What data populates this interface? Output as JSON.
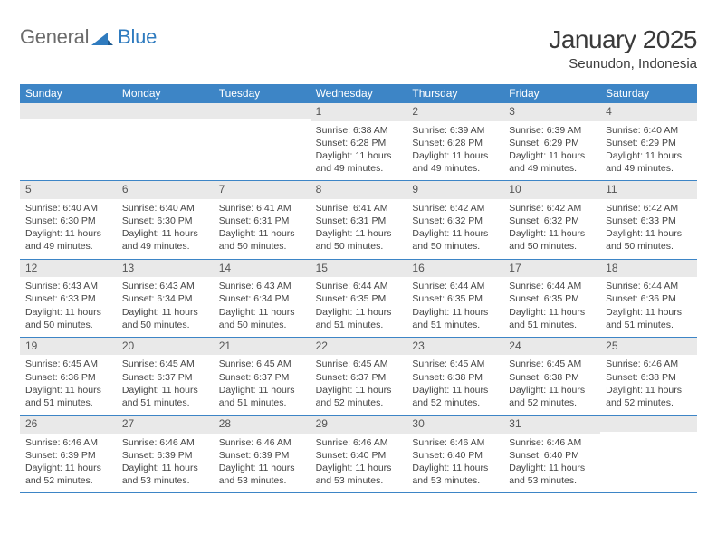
{
  "logo": {
    "text1": "General",
    "text2": "Blue",
    "text_color": "#6b6b6b",
    "accent_color": "#2f7bbf",
    "fontsize": 22
  },
  "title": {
    "month": "January 2025",
    "location": "Seunudon, Indonesia",
    "month_fontsize": 28,
    "month_color": "#3a3a3a",
    "location_fontsize": 15,
    "location_color": "#3a3a3a"
  },
  "colors": {
    "header_bg": "#3d85c6",
    "header_text": "#ffffff",
    "daynum_bg": "#e9e9e9",
    "daynum_text": "#555555",
    "body_text": "#444444",
    "week_border": "#3d85c6",
    "page_bg": "#ffffff"
  },
  "weekdays": [
    "Sunday",
    "Monday",
    "Tuesday",
    "Wednesday",
    "Thursday",
    "Friday",
    "Saturday"
  ],
  "weeks": [
    [
      {
        "day": "",
        "sunrise": "",
        "sunset": "",
        "daylight": ""
      },
      {
        "day": "",
        "sunrise": "",
        "sunset": "",
        "daylight": ""
      },
      {
        "day": "",
        "sunrise": "",
        "sunset": "",
        "daylight": ""
      },
      {
        "day": "1",
        "sunrise": "Sunrise: 6:38 AM",
        "sunset": "Sunset: 6:28 PM",
        "daylight": "Daylight: 11 hours and 49 minutes."
      },
      {
        "day": "2",
        "sunrise": "Sunrise: 6:39 AM",
        "sunset": "Sunset: 6:28 PM",
        "daylight": "Daylight: 11 hours and 49 minutes."
      },
      {
        "day": "3",
        "sunrise": "Sunrise: 6:39 AM",
        "sunset": "Sunset: 6:29 PM",
        "daylight": "Daylight: 11 hours and 49 minutes."
      },
      {
        "day": "4",
        "sunrise": "Sunrise: 6:40 AM",
        "sunset": "Sunset: 6:29 PM",
        "daylight": "Daylight: 11 hours and 49 minutes."
      }
    ],
    [
      {
        "day": "5",
        "sunrise": "Sunrise: 6:40 AM",
        "sunset": "Sunset: 6:30 PM",
        "daylight": "Daylight: 11 hours and 49 minutes."
      },
      {
        "day": "6",
        "sunrise": "Sunrise: 6:40 AM",
        "sunset": "Sunset: 6:30 PM",
        "daylight": "Daylight: 11 hours and 49 minutes."
      },
      {
        "day": "7",
        "sunrise": "Sunrise: 6:41 AM",
        "sunset": "Sunset: 6:31 PM",
        "daylight": "Daylight: 11 hours and 50 minutes."
      },
      {
        "day": "8",
        "sunrise": "Sunrise: 6:41 AM",
        "sunset": "Sunset: 6:31 PM",
        "daylight": "Daylight: 11 hours and 50 minutes."
      },
      {
        "day": "9",
        "sunrise": "Sunrise: 6:42 AM",
        "sunset": "Sunset: 6:32 PM",
        "daylight": "Daylight: 11 hours and 50 minutes."
      },
      {
        "day": "10",
        "sunrise": "Sunrise: 6:42 AM",
        "sunset": "Sunset: 6:32 PM",
        "daylight": "Daylight: 11 hours and 50 minutes."
      },
      {
        "day": "11",
        "sunrise": "Sunrise: 6:42 AM",
        "sunset": "Sunset: 6:33 PM",
        "daylight": "Daylight: 11 hours and 50 minutes."
      }
    ],
    [
      {
        "day": "12",
        "sunrise": "Sunrise: 6:43 AM",
        "sunset": "Sunset: 6:33 PM",
        "daylight": "Daylight: 11 hours and 50 minutes."
      },
      {
        "day": "13",
        "sunrise": "Sunrise: 6:43 AM",
        "sunset": "Sunset: 6:34 PM",
        "daylight": "Daylight: 11 hours and 50 minutes."
      },
      {
        "day": "14",
        "sunrise": "Sunrise: 6:43 AM",
        "sunset": "Sunset: 6:34 PM",
        "daylight": "Daylight: 11 hours and 50 minutes."
      },
      {
        "day": "15",
        "sunrise": "Sunrise: 6:44 AM",
        "sunset": "Sunset: 6:35 PM",
        "daylight": "Daylight: 11 hours and 51 minutes."
      },
      {
        "day": "16",
        "sunrise": "Sunrise: 6:44 AM",
        "sunset": "Sunset: 6:35 PM",
        "daylight": "Daylight: 11 hours and 51 minutes."
      },
      {
        "day": "17",
        "sunrise": "Sunrise: 6:44 AM",
        "sunset": "Sunset: 6:35 PM",
        "daylight": "Daylight: 11 hours and 51 minutes."
      },
      {
        "day": "18",
        "sunrise": "Sunrise: 6:44 AM",
        "sunset": "Sunset: 6:36 PM",
        "daylight": "Daylight: 11 hours and 51 minutes."
      }
    ],
    [
      {
        "day": "19",
        "sunrise": "Sunrise: 6:45 AM",
        "sunset": "Sunset: 6:36 PM",
        "daylight": "Daylight: 11 hours and 51 minutes."
      },
      {
        "day": "20",
        "sunrise": "Sunrise: 6:45 AM",
        "sunset": "Sunset: 6:37 PM",
        "daylight": "Daylight: 11 hours and 51 minutes."
      },
      {
        "day": "21",
        "sunrise": "Sunrise: 6:45 AM",
        "sunset": "Sunset: 6:37 PM",
        "daylight": "Daylight: 11 hours and 51 minutes."
      },
      {
        "day": "22",
        "sunrise": "Sunrise: 6:45 AM",
        "sunset": "Sunset: 6:37 PM",
        "daylight": "Daylight: 11 hours and 52 minutes."
      },
      {
        "day": "23",
        "sunrise": "Sunrise: 6:45 AM",
        "sunset": "Sunset: 6:38 PM",
        "daylight": "Daylight: 11 hours and 52 minutes."
      },
      {
        "day": "24",
        "sunrise": "Sunrise: 6:45 AM",
        "sunset": "Sunset: 6:38 PM",
        "daylight": "Daylight: 11 hours and 52 minutes."
      },
      {
        "day": "25",
        "sunrise": "Sunrise: 6:46 AM",
        "sunset": "Sunset: 6:38 PM",
        "daylight": "Daylight: 11 hours and 52 minutes."
      }
    ],
    [
      {
        "day": "26",
        "sunrise": "Sunrise: 6:46 AM",
        "sunset": "Sunset: 6:39 PM",
        "daylight": "Daylight: 11 hours and 52 minutes."
      },
      {
        "day": "27",
        "sunrise": "Sunrise: 6:46 AM",
        "sunset": "Sunset: 6:39 PM",
        "daylight": "Daylight: 11 hours and 53 minutes."
      },
      {
        "day": "28",
        "sunrise": "Sunrise: 6:46 AM",
        "sunset": "Sunset: 6:39 PM",
        "daylight": "Daylight: 11 hours and 53 minutes."
      },
      {
        "day": "29",
        "sunrise": "Sunrise: 6:46 AM",
        "sunset": "Sunset: 6:40 PM",
        "daylight": "Daylight: 11 hours and 53 minutes."
      },
      {
        "day": "30",
        "sunrise": "Sunrise: 6:46 AM",
        "sunset": "Sunset: 6:40 PM",
        "daylight": "Daylight: 11 hours and 53 minutes."
      },
      {
        "day": "31",
        "sunrise": "Sunrise: 6:46 AM",
        "sunset": "Sunset: 6:40 PM",
        "daylight": "Daylight: 11 hours and 53 minutes."
      },
      {
        "day": "",
        "sunrise": "",
        "sunset": "",
        "daylight": ""
      }
    ]
  ]
}
